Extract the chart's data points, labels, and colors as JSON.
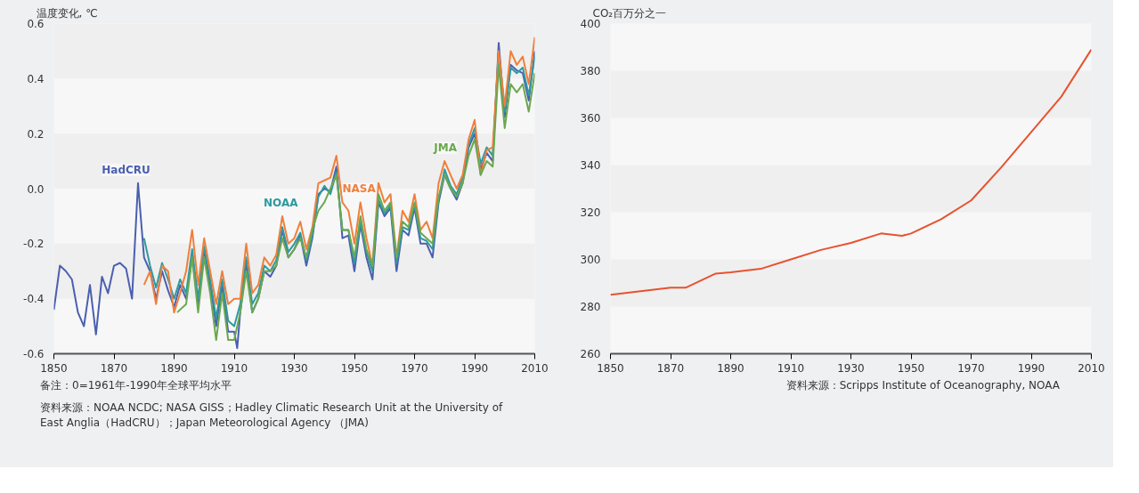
{
  "chart_data": [
    {
      "type": "line",
      "ylabel": "温度变化, ℃",
      "xlim": [
        1850,
        2010
      ],
      "xticks": [
        1850,
        1870,
        1890,
        1910,
        1930,
        1950,
        1970,
        1990,
        2010
      ],
      "ylim": [
        -0.6,
        0.6
      ],
      "yticks": [
        {
          "value": -0.6,
          "label": "-0.6"
        },
        {
          "value": -0.4,
          "label": "-0.4"
        },
        {
          "value": -0.2,
          "label": "-0.2"
        },
        {
          "value": 0,
          "label": "0.0"
        },
        {
          "value": 0.2,
          "label": "0.2"
        },
        {
          "value": 0.4,
          "label": "0.4"
        },
        {
          "value": 0.6,
          "label": "0.6"
        }
      ],
      "legend": false,
      "annotations": [
        "备注：0=1961年-1990年全球平均水平",
        "资料来源：NOAA NCDC; NASA GISS；Hadley Climatic Research Unit at the University of East Anglia（HadCRU）；Japan Meteorological Agency （JMA)"
      ],
      "series": [
        {
          "name": "HadCRU",
          "color": "#4a5fb0",
          "x": [
            1850,
            1852,
            1854,
            1856,
            1858,
            1860,
            1862,
            1864,
            1866,
            1868,
            1870,
            1872,
            1874,
            1876,
            1878,
            1880,
            1882,
            1884,
            1886,
            1888,
            1890,
            1892,
            1894,
            1896,
            1898,
            1900,
            1902,
            1904,
            1906,
            1908,
            1910,
            1911,
            1912,
            1914,
            1916,
            1918,
            1920,
            1922,
            1924,
            1926,
            1928,
            1930,
            1932,
            1934,
            1936,
            1938,
            1940,
            1942,
            1944,
            1946,
            1948,
            1950,
            1952,
            1954,
            1956,
            1958,
            1960,
            1962,
            1964,
            1966,
            1968,
            1970,
            1972,
            1974,
            1976,
            1978,
            1980,
            1982,
            1984,
            1986,
            1988,
            1990,
            1992,
            1994,
            1996,
            1998,
            2000,
            2002,
            2004,
            2006,
            2008,
            2010
          ],
          "values": [
            -0.44,
            -0.28,
            -0.3,
            -0.33,
            -0.45,
            -0.5,
            -0.35,
            -0.53,
            -0.32,
            -0.38,
            -0.28,
            -0.27,
            -0.29,
            -0.4,
            0.02,
            -0.25,
            -0.3,
            -0.4,
            -0.3,
            -0.37,
            -0.43,
            -0.35,
            -0.4,
            -0.25,
            -0.42,
            -0.22,
            -0.35,
            -0.5,
            -0.35,
            -0.52,
            -0.52,
            -0.58,
            -0.45,
            -0.27,
            -0.45,
            -0.4,
            -0.3,
            -0.32,
            -0.28,
            -0.15,
            -0.25,
            -0.22,
            -0.17,
            -0.28,
            -0.18,
            -0.02,
            0.0,
            -0.01,
            0.08,
            -0.18,
            -0.17,
            -0.3,
            -0.13,
            -0.25,
            -0.33,
            -0.05,
            -0.1,
            -0.07,
            -0.3,
            -0.15,
            -0.17,
            -0.07,
            -0.2,
            -0.2,
            -0.25,
            -0.05,
            0.05,
            0.0,
            -0.04,
            0.02,
            0.15,
            0.2,
            0.07,
            0.13,
            0.1,
            0.53,
            0.26,
            0.45,
            0.43,
            0.42,
            0.32,
            0.5
          ]
        },
        {
          "name": "NOAA",
          "color": "#2e9aa0",
          "x": [
            1880,
            1882,
            1884,
            1886,
            1888,
            1890,
            1892,
            1894,
            1896,
            1898,
            1900,
            1902,
            1904,
            1906,
            1908,
            1910,
            1912,
            1914,
            1916,
            1918,
            1920,
            1922,
            1924,
            1926,
            1928,
            1930,
            1932,
            1934,
            1936,
            1938,
            1940,
            1942,
            1944,
            1946,
            1948,
            1950,
            1952,
            1954,
            1956,
            1958,
            1960,
            1962,
            1964,
            1966,
            1968,
            1970,
            1972,
            1974,
            1976,
            1978,
            1980,
            1982,
            1984,
            1986,
            1988,
            1990,
            1992,
            1994,
            1996,
            1998,
            2000,
            2002,
            2004,
            2006,
            2008,
            2010
          ],
          "values": [
            -0.18,
            -0.28,
            -0.36,
            -0.27,
            -0.33,
            -0.4,
            -0.33,
            -0.38,
            -0.22,
            -0.4,
            -0.21,
            -0.33,
            -0.47,
            -0.33,
            -0.48,
            -0.5,
            -0.42,
            -0.25,
            -0.42,
            -0.38,
            -0.28,
            -0.3,
            -0.26,
            -0.14,
            -0.23,
            -0.2,
            -0.16,
            -0.26,
            -0.17,
            -0.03,
            0.01,
            -0.02,
            0.06,
            -0.15,
            -0.15,
            -0.27,
            -0.12,
            -0.23,
            -0.3,
            -0.04,
            -0.09,
            -0.06,
            -0.27,
            -0.14,
            -0.15,
            -0.06,
            -0.18,
            -0.19,
            -0.22,
            -0.04,
            0.07,
            0.01,
            -0.02,
            0.04,
            0.16,
            0.22,
            0.09,
            0.15,
            0.12,
            0.5,
            0.28,
            0.44,
            0.42,
            0.44,
            0.34,
            0.48
          ]
        },
        {
          "name": "NASA",
          "color": "#f07f3c",
          "x": [
            1880,
            1882,
            1884,
            1886,
            1888,
            1890,
            1892,
            1894,
            1896,
            1898,
            1900,
            1902,
            1904,
            1906,
            1908,
            1910,
            1912,
            1914,
            1916,
            1918,
            1920,
            1922,
            1924,
            1926,
            1928,
            1930,
            1932,
            1934,
            1936,
            1938,
            1940,
            1942,
            1944,
            1946,
            1948,
            1950,
            1952,
            1954,
            1956,
            1958,
            1960,
            1962,
            1964,
            1966,
            1968,
            1970,
            1972,
            1974,
            1976,
            1978,
            1980,
            1982,
            1984,
            1986,
            1988,
            1990,
            1992,
            1994,
            1996,
            1998,
            2000,
            2002,
            2004,
            2006,
            2008,
            2010
          ],
          "values": [
            -0.35,
            -0.3,
            -0.42,
            -0.28,
            -0.3,
            -0.45,
            -0.38,
            -0.3,
            -0.15,
            -0.35,
            -0.18,
            -0.3,
            -0.42,
            -0.3,
            -0.42,
            -0.4,
            -0.4,
            -0.2,
            -0.38,
            -0.35,
            -0.25,
            -0.28,
            -0.24,
            -0.1,
            -0.2,
            -0.18,
            -0.12,
            -0.22,
            -0.14,
            0.02,
            0.03,
            0.04,
            0.12,
            -0.05,
            -0.08,
            -0.2,
            -0.05,
            -0.18,
            -0.28,
            0.02,
            -0.05,
            -0.02,
            -0.25,
            -0.08,
            -0.12,
            -0.02,
            -0.15,
            -0.12,
            -0.18,
            0.02,
            0.1,
            0.05,
            0.0,
            0.05,
            0.18,
            0.25,
            0.05,
            0.14,
            0.15,
            0.5,
            0.3,
            0.5,
            0.45,
            0.48,
            0.38,
            0.55
          ]
        },
        {
          "name": "JMA",
          "color": "#6aa84f",
          "x": [
            1891,
            1894,
            1896,
            1898,
            1900,
            1902,
            1904,
            1906,
            1908,
            1910,
            1912,
            1914,
            1916,
            1918,
            1920,
            1922,
            1924,
            1926,
            1928,
            1930,
            1932,
            1934,
            1936,
            1938,
            1940,
            1942,
            1944,
            1946,
            1948,
            1950,
            1952,
            1954,
            1956,
            1958,
            1960,
            1962,
            1964,
            1966,
            1968,
            1970,
            1972,
            1974,
            1976,
            1978,
            1980,
            1982,
            1984,
            1986,
            1988,
            1990,
            1992,
            1994,
            1996,
            1998,
            2000,
            2002,
            2004,
            2006,
            2008,
            2010
          ],
          "values": [
            -0.45,
            -0.42,
            -0.25,
            -0.45,
            -0.25,
            -0.38,
            -0.55,
            -0.38,
            -0.55,
            -0.55,
            -0.45,
            -0.3,
            -0.45,
            -0.4,
            -0.3,
            -0.3,
            -0.28,
            -0.18,
            -0.25,
            -0.22,
            -0.18,
            -0.25,
            -0.15,
            -0.08,
            -0.05,
            0.0,
            0.05,
            -0.15,
            -0.15,
            -0.25,
            -0.1,
            -0.22,
            -0.28,
            -0.02,
            -0.08,
            -0.05,
            -0.25,
            -0.12,
            -0.14,
            -0.05,
            -0.16,
            -0.18,
            -0.2,
            -0.03,
            0.05,
            0.0,
            -0.03,
            0.02,
            0.12,
            0.18,
            0.05,
            0.1,
            0.08,
            0.45,
            0.22,
            0.38,
            0.35,
            0.38,
            0.28,
            0.42
          ]
        }
      ]
    },
    {
      "type": "line",
      "ylabel": "CO₂百万分之一",
      "xlim": [
        1850,
        2010
      ],
      "xticks": [
        1850,
        1870,
        1890,
        1910,
        1930,
        1950,
        1970,
        1990,
        2010
      ],
      "ylim": [
        260,
        400
      ],
      "yticks": [
        260,
        280,
        300,
        320,
        340,
        360,
        380,
        400
      ],
      "legend": false,
      "annotations": [
        "资料来源：Scripps Institute of Oceanography, NOAA"
      ],
      "series": [
        {
          "color": "#e8522f",
          "x": [
            1850,
            1860,
            1870,
            1875,
            1880,
            1885,
            1890,
            1900,
            1910,
            1920,
            1930,
            1940,
            1947,
            1950,
            1960,
            1970,
            1980,
            1990,
            2000,
            2010
          ],
          "values": [
            285,
            286.5,
            288,
            288,
            291,
            294,
            294.5,
            296,
            300,
            304,
            307,
            311,
            310,
            311,
            317,
            325,
            339,
            354,
            369,
            389
          ]
        }
      ]
    }
  ]
}
